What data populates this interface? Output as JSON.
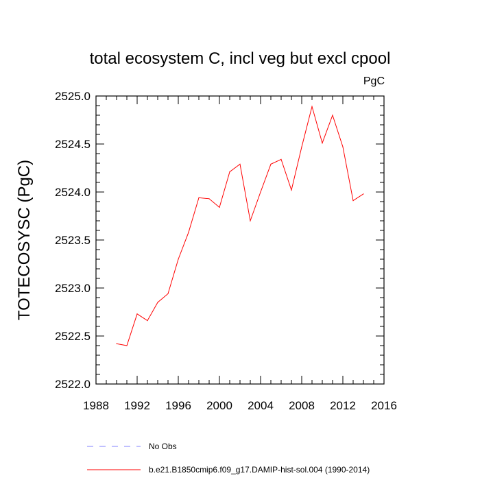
{
  "chart_data": {
    "type": "line",
    "title": "total ecosystem C, incl veg but excl cpool",
    "units": "PgC",
    "ylabel": "TOTECOSYSC  (PgC)",
    "xlabel": "",
    "xlim": [
      1988,
      2016
    ],
    "ylim": [
      2522.0,
      2525.0
    ],
    "x_ticks": [
      1988,
      1992,
      1996,
      2000,
      2004,
      2008,
      2012,
      2016
    ],
    "x_tick_labels": [
      "1988",
      "1992",
      "1996",
      "2000",
      "2004",
      "2008",
      "2012",
      "2016"
    ],
    "y_ticks": [
      2522.0,
      2522.5,
      2523.0,
      2523.5,
      2524.0,
      2524.5,
      2525.0
    ],
    "y_tick_labels": [
      "2522.0",
      "2522.5",
      "2523.0",
      "2523.5",
      "2524.0",
      "2524.5",
      "2525.0"
    ],
    "grid": false,
    "legend_position": "bottom",
    "series": [
      {
        "name": "b.e21.B1850cmip6.f09_g17.DAMIP-hist-sol.004 (1990-2014)",
        "color": "#ff0000",
        "style": "solid",
        "x": [
          1990,
          1991,
          1992,
          1993,
          1994,
          1995,
          1996,
          1997,
          1998,
          1999,
          2000,
          2001,
          2002,
          2003,
          2004,
          2005,
          2006,
          2007,
          2008,
          2009,
          2010,
          2011,
          2012,
          2013,
          2014
        ],
        "values": [
          2522.42,
          2522.4,
          2522.73,
          2522.66,
          2522.85,
          2522.94,
          2523.3,
          2523.58,
          2523.94,
          2523.93,
          2523.84,
          2524.21,
          2524.29,
          2523.7,
          2524.0,
          2524.29,
          2524.34,
          2524.02,
          2524.47,
          2524.89,
          2524.51,
          2524.8,
          2524.47,
          2523.91,
          2523.98
        ]
      },
      {
        "name": "No Obs",
        "color": "#8080ff",
        "style": "dashed",
        "x": [],
        "values": []
      }
    ]
  }
}
